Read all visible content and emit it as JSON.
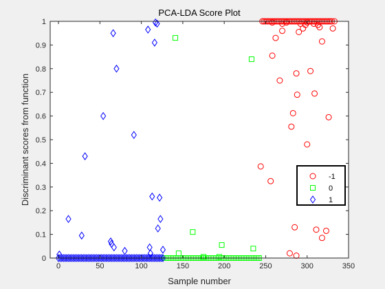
{
  "chart_data": {
    "type": "scatter",
    "title": "PCA-LDA Score Plot",
    "xlabel": "Sample number",
    "ylabel": "Discriminant scores from function",
    "xlim": [
      -10,
      350
    ],
    "ylim": [
      0,
      1
    ],
    "xticks": [
      "0",
      "50",
      "100",
      "150",
      "200",
      "250",
      "300",
      "350"
    ],
    "yticks": [
      "0",
      "0.1",
      "0.2",
      "0.3",
      "0.4",
      "0.5",
      "0.6",
      "0.7",
      "0.8",
      "0.9",
      "1"
    ],
    "grid": false,
    "legend_position": "right",
    "series": [
      {
        "name": "-1",
        "marker": "circle",
        "color": "#ff0000",
        "points": [
          [
            244,
            0.387
          ],
          [
            256,
            0.325
          ],
          [
            262,
            0.93
          ],
          [
            258,
            0.855
          ],
          [
            267,
            0.75
          ],
          [
            270,
            0.96
          ],
          [
            279,
            0.02
          ],
          [
            281,
            0.555
          ],
          [
            283,
            0.612
          ],
          [
            285,
            0.13
          ],
          [
            287,
            0.01
          ],
          [
            287,
            0.78
          ],
          [
            288,
            0.69
          ],
          [
            290,
            0.955
          ],
          [
            295,
            0.97
          ],
          [
            298,
            0.985
          ],
          [
            300,
            0.48
          ],
          [
            304,
            0.79
          ],
          [
            309,
            0.695
          ],
          [
            311,
            0.12
          ],
          [
            315,
            0.975
          ],
          [
            318,
            0.915
          ],
          [
            318,
            0.085
          ],
          [
            323,
            0.115
          ],
          [
            326,
            0.595
          ],
          [
            331,
            0.97
          ],
          [
            308,
            0.99
          ],
          [
            313,
            0.985
          ],
          [
            300,
            0.995
          ],
          [
            292,
            0.99
          ],
          [
            275,
            0.995
          ],
          [
            270,
            0.99
          ],
          [
            258,
            0.995
          ],
          [
            246,
            1
          ],
          [
            250,
            1
          ],
          [
            254,
            1
          ],
          [
            258,
            1
          ],
          [
            262,
            1
          ],
          [
            266,
            1
          ],
          [
            270,
            1
          ],
          [
            274,
            1
          ],
          [
            278,
            1
          ],
          [
            282,
            1
          ],
          [
            286,
            1
          ],
          [
            290,
            1
          ],
          [
            294,
            1
          ],
          [
            298,
            1
          ],
          [
            302,
            1
          ],
          [
            306,
            1
          ],
          [
            310,
            1
          ],
          [
            314,
            1
          ],
          [
            318,
            1
          ],
          [
            322,
            1
          ],
          [
            326,
            1
          ],
          [
            330,
            1
          ],
          [
            333,
            1
          ],
          [
            248,
            1
          ],
          [
            252,
            1
          ],
          [
            256,
            1
          ],
          [
            260,
            1
          ],
          [
            264,
            1
          ],
          [
            268,
            1
          ],
          [
            272,
            1
          ],
          [
            276,
            1
          ],
          [
            280,
            1
          ],
          [
            284,
            1
          ],
          [
            288,
            1
          ],
          [
            292,
            1
          ],
          [
            296,
            1
          ],
          [
            300,
            1
          ],
          [
            304,
            1
          ],
          [
            308,
            1
          ],
          [
            312,
            1
          ],
          [
            316,
            1
          ],
          [
            320,
            1
          ],
          [
            324,
            1
          ],
          [
            328,
            1
          ]
        ]
      },
      {
        "name": "0",
        "marker": "square",
        "color": "#00ff00",
        "points": [
          [
            141,
            0.93
          ],
          [
            145,
            0.02
          ],
          [
            162,
            0.11
          ],
          [
            175,
            0.005
          ],
          [
            194,
            0.005
          ],
          [
            197,
            0.055
          ],
          [
            233,
            0.84
          ],
          [
            235,
            0.04
          ],
          [
            128,
            0
          ],
          [
            130,
            0
          ],
          [
            132,
            0
          ],
          [
            134,
            0
          ],
          [
            136,
            0
          ],
          [
            138,
            0
          ],
          [
            140,
            0
          ],
          [
            142,
            0
          ],
          [
            144,
            0
          ],
          [
            146,
            0
          ],
          [
            148,
            0
          ],
          [
            150,
            0
          ],
          [
            152,
            0
          ],
          [
            154,
            0
          ],
          [
            156,
            0
          ],
          [
            158,
            0
          ],
          [
            160,
            0
          ],
          [
            162,
            0
          ],
          [
            164,
            0
          ],
          [
            166,
            0
          ],
          [
            168,
            0
          ],
          [
            170,
            0
          ],
          [
            172,
            0
          ],
          [
            174,
            0
          ],
          [
            176,
            0
          ],
          [
            178,
            0
          ],
          [
            180,
            0
          ],
          [
            182,
            0
          ],
          [
            184,
            0
          ],
          [
            186,
            0
          ],
          [
            188,
            0
          ],
          [
            190,
            0
          ],
          [
            192,
            0
          ],
          [
            194,
            0
          ],
          [
            196,
            0
          ],
          [
            198,
            0
          ],
          [
            200,
            0
          ],
          [
            202,
            0
          ],
          [
            204,
            0
          ],
          [
            206,
            0
          ],
          [
            208,
            0
          ],
          [
            210,
            0
          ],
          [
            212,
            0
          ],
          [
            214,
            0
          ],
          [
            216,
            0
          ],
          [
            218,
            0
          ],
          [
            220,
            0
          ],
          [
            222,
            0
          ],
          [
            224,
            0
          ],
          [
            226,
            0
          ],
          [
            228,
            0
          ],
          [
            230,
            0
          ],
          [
            232,
            0
          ],
          [
            234,
            0
          ],
          [
            236,
            0
          ],
          [
            238,
            0
          ],
          [
            240,
            0
          ],
          [
            242,
            0
          ]
        ]
      },
      {
        "name": "1",
        "marker": "diamond",
        "color": "#0000ff",
        "points": [
          [
            1,
            0.015
          ],
          [
            12,
            0.165
          ],
          [
            28,
            0.095
          ],
          [
            32,
            0.43
          ],
          [
            54,
            0.6
          ],
          [
            63,
            0.07
          ],
          [
            64,
            0.06
          ],
          [
            66,
            0.95
          ],
          [
            67,
            0.045
          ],
          [
            70,
            0.8
          ],
          [
            80,
            0.03
          ],
          [
            91,
            0.52
          ],
          [
            108,
            0.965
          ],
          [
            110,
            0.045
          ],
          [
            111,
            0.02
          ],
          [
            113,
            0.26
          ],
          [
            116,
            0.91
          ],
          [
            117,
            0.995
          ],
          [
            119,
            0.99
          ],
          [
            120,
            0.125
          ],
          [
            122,
            0.255
          ],
          [
            123,
            0.165
          ],
          [
            126,
            0.035
          ],
          [
            0,
            0
          ],
          [
            2,
            0
          ],
          [
            4,
            0
          ],
          [
            6,
            0
          ],
          [
            8,
            0
          ],
          [
            10,
            0
          ],
          [
            12,
            0
          ],
          [
            14,
            0
          ],
          [
            16,
            0
          ],
          [
            18,
            0
          ],
          [
            20,
            0
          ],
          [
            22,
            0
          ],
          [
            24,
            0
          ],
          [
            26,
            0
          ],
          [
            28,
            0
          ],
          [
            30,
            0
          ],
          [
            32,
            0
          ],
          [
            34,
            0
          ],
          [
            36,
            0
          ],
          [
            38,
            0
          ],
          [
            40,
            0
          ],
          [
            42,
            0
          ],
          [
            44,
            0
          ],
          [
            46,
            0
          ],
          [
            48,
            0
          ],
          [
            50,
            0
          ],
          [
            52,
            0
          ],
          [
            54,
            0
          ],
          [
            56,
            0
          ],
          [
            58,
            0
          ],
          [
            60,
            0
          ],
          [
            62,
            0
          ],
          [
            64,
            0
          ],
          [
            66,
            0
          ],
          [
            68,
            0
          ],
          [
            70,
            0
          ],
          [
            72,
            0
          ],
          [
            74,
            0
          ],
          [
            76,
            0
          ],
          [
            78,
            0
          ],
          [
            80,
            0
          ],
          [
            82,
            0
          ],
          [
            84,
            0
          ],
          [
            86,
            0
          ],
          [
            88,
            0
          ],
          [
            90,
            0
          ],
          [
            92,
            0
          ],
          [
            94,
            0
          ],
          [
            96,
            0
          ],
          [
            98,
            0
          ],
          [
            100,
            0
          ],
          [
            102,
            0
          ],
          [
            104,
            0
          ],
          [
            106,
            0
          ],
          [
            108,
            0
          ],
          [
            110,
            0
          ],
          [
            112,
            0
          ],
          [
            114,
            0
          ],
          [
            116,
            0
          ],
          [
            118,
            0
          ],
          [
            120,
            0
          ],
          [
            122,
            0
          ],
          [
            124,
            0
          ],
          [
            126,
            0
          ]
        ]
      }
    ]
  }
}
